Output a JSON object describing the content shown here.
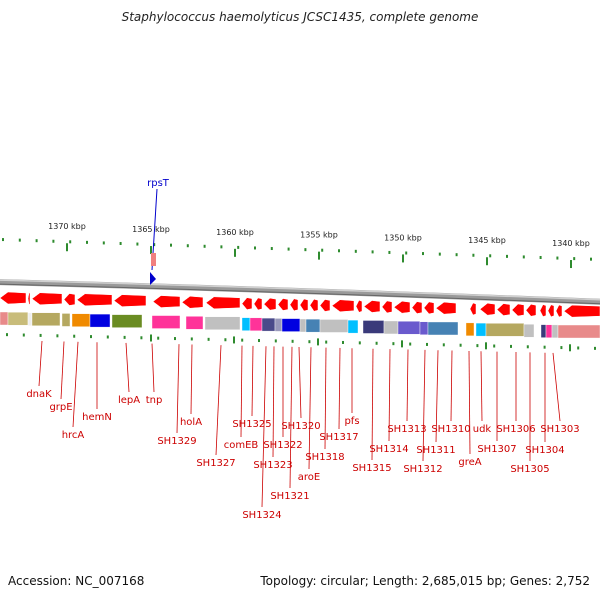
{
  "title": "Staphylococcus haemolyticus JCSC1435, complete genome",
  "accession": "Accession: NC_007168",
  "topology": "Topology: circular; Length: 2,685,015 bp; Genes: 2,752",
  "scale_labels": [
    {
      "kbp": 1370,
      "label": "1370 kbp"
    },
    {
      "kbp": 1365,
      "label": "1365 kbp"
    },
    {
      "kbp": 1360,
      "label": "1360 kbp"
    },
    {
      "kbp": 1355,
      "label": "1355 kbp"
    },
    {
      "kbp": 1350,
      "label": "1350 kbp"
    },
    {
      "kbp": 1345,
      "label": "1345 kbp"
    },
    {
      "kbp": 1340,
      "label": "1340 kbp"
    }
  ],
  "rna_marker": {
    "label": "rpsT"
  },
  "gene_labels": [
    {
      "name": "dnaK"
    },
    {
      "name": "grpE"
    },
    {
      "name": "hrcA"
    },
    {
      "name": "hemN"
    },
    {
      "name": "lepA"
    },
    {
      "name": "tnp"
    },
    {
      "name": "SH1329"
    },
    {
      "name": "holA"
    },
    {
      "name": "SH1327"
    },
    {
      "name": "comEB"
    },
    {
      "name": "SH1325"
    },
    {
      "name": "SH1324"
    },
    {
      "name": "SH1323"
    },
    {
      "name": "SH1322"
    },
    {
      "name": "SH1321"
    },
    {
      "name": "SH1320"
    },
    {
      "name": "aroE"
    },
    {
      "name": "SH1318"
    },
    {
      "name": "SH1317"
    },
    {
      "name": "pfs"
    },
    {
      "name": "SH1315"
    },
    {
      "name": "SH1314"
    },
    {
      "name": "SH1313"
    },
    {
      "name": "SH1312"
    },
    {
      "name": "SH1311"
    },
    {
      "name": "SH1310"
    },
    {
      "name": "greA"
    },
    {
      "name": "udk"
    },
    {
      "name": "SH1307"
    },
    {
      "name": "SH1306"
    },
    {
      "name": "SH1305"
    },
    {
      "name": "SH1304"
    },
    {
      "name": "SH1303"
    }
  ],
  "colors": {
    "gene_arrow": "#ff0000",
    "label": "#cc0000",
    "scale_tick": "#2e8b2e",
    "rna_marker": "#0000cc",
    "backbone": "#888888"
  }
}
